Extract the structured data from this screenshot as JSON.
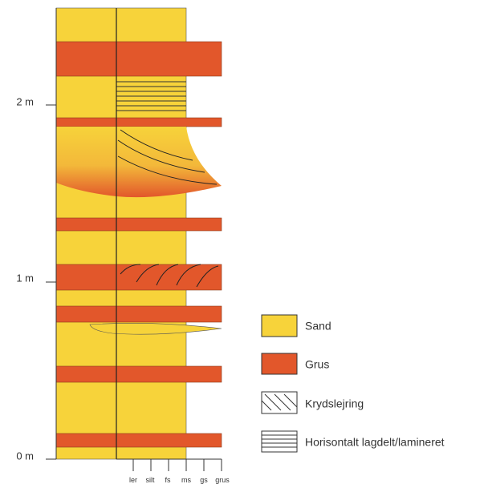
{
  "depth_labels": [
    "0 m",
    "1 m",
    "2 m"
  ],
  "grain_size_labels": [
    "ler",
    "silt",
    "fs",
    "ms",
    "gs",
    "grus"
  ],
  "legend": [
    "Sand",
    "Grus",
    "Krydslejring",
    "Horisontalt lagdelt/lamineret"
  ]
}
